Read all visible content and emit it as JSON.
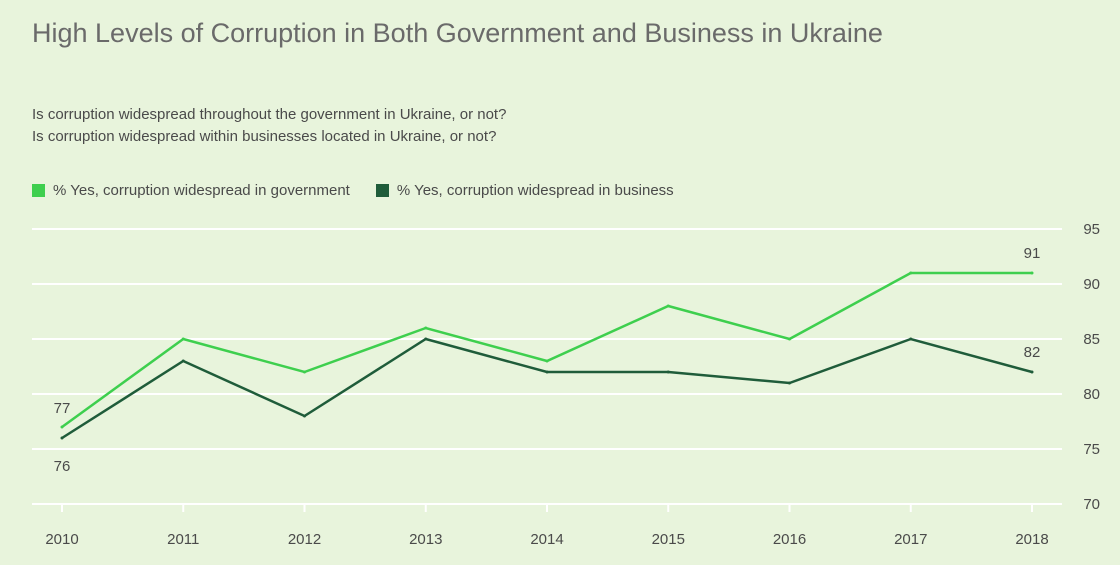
{
  "header": {
    "title": "High Levels of Corruption in Both Government and Business in Ukraine",
    "subtitle_line1": "Is corruption widespread throughout the government in Ukraine, or not?",
    "subtitle_line2": "Is corruption widespread within businesses located in Ukraine, or not?"
  },
  "colors": {
    "background": "#e8f4dc",
    "government": "#3ecf4e",
    "business": "#1f5c3a",
    "grid": "#ffffff"
  },
  "chart_data": {
    "type": "line",
    "x": [
      "2010",
      "2011",
      "2012",
      "2013",
      "2014",
      "2015",
      "2016",
      "2017",
      "2018"
    ],
    "series": [
      {
        "name": "% Yes, corruption widespread in government",
        "values": [
          77,
          85,
          82,
          86,
          83,
          88,
          85,
          91,
          91
        ]
      },
      {
        "name": "% Yes, corruption widespread in business",
        "values": [
          76,
          83,
          78,
          85,
          82,
          82,
          81,
          85,
          82
        ]
      }
    ],
    "ylim": [
      70,
      95
    ],
    "yticks": [
      "95",
      "90",
      "85",
      "80",
      "75",
      "70"
    ],
    "data_labels": {
      "government_first": "77",
      "business_first": "76",
      "government_last": "91",
      "business_last": "82"
    },
    "grid": true,
    "y_axis_position": "right",
    "legend_position": "top-left"
  }
}
